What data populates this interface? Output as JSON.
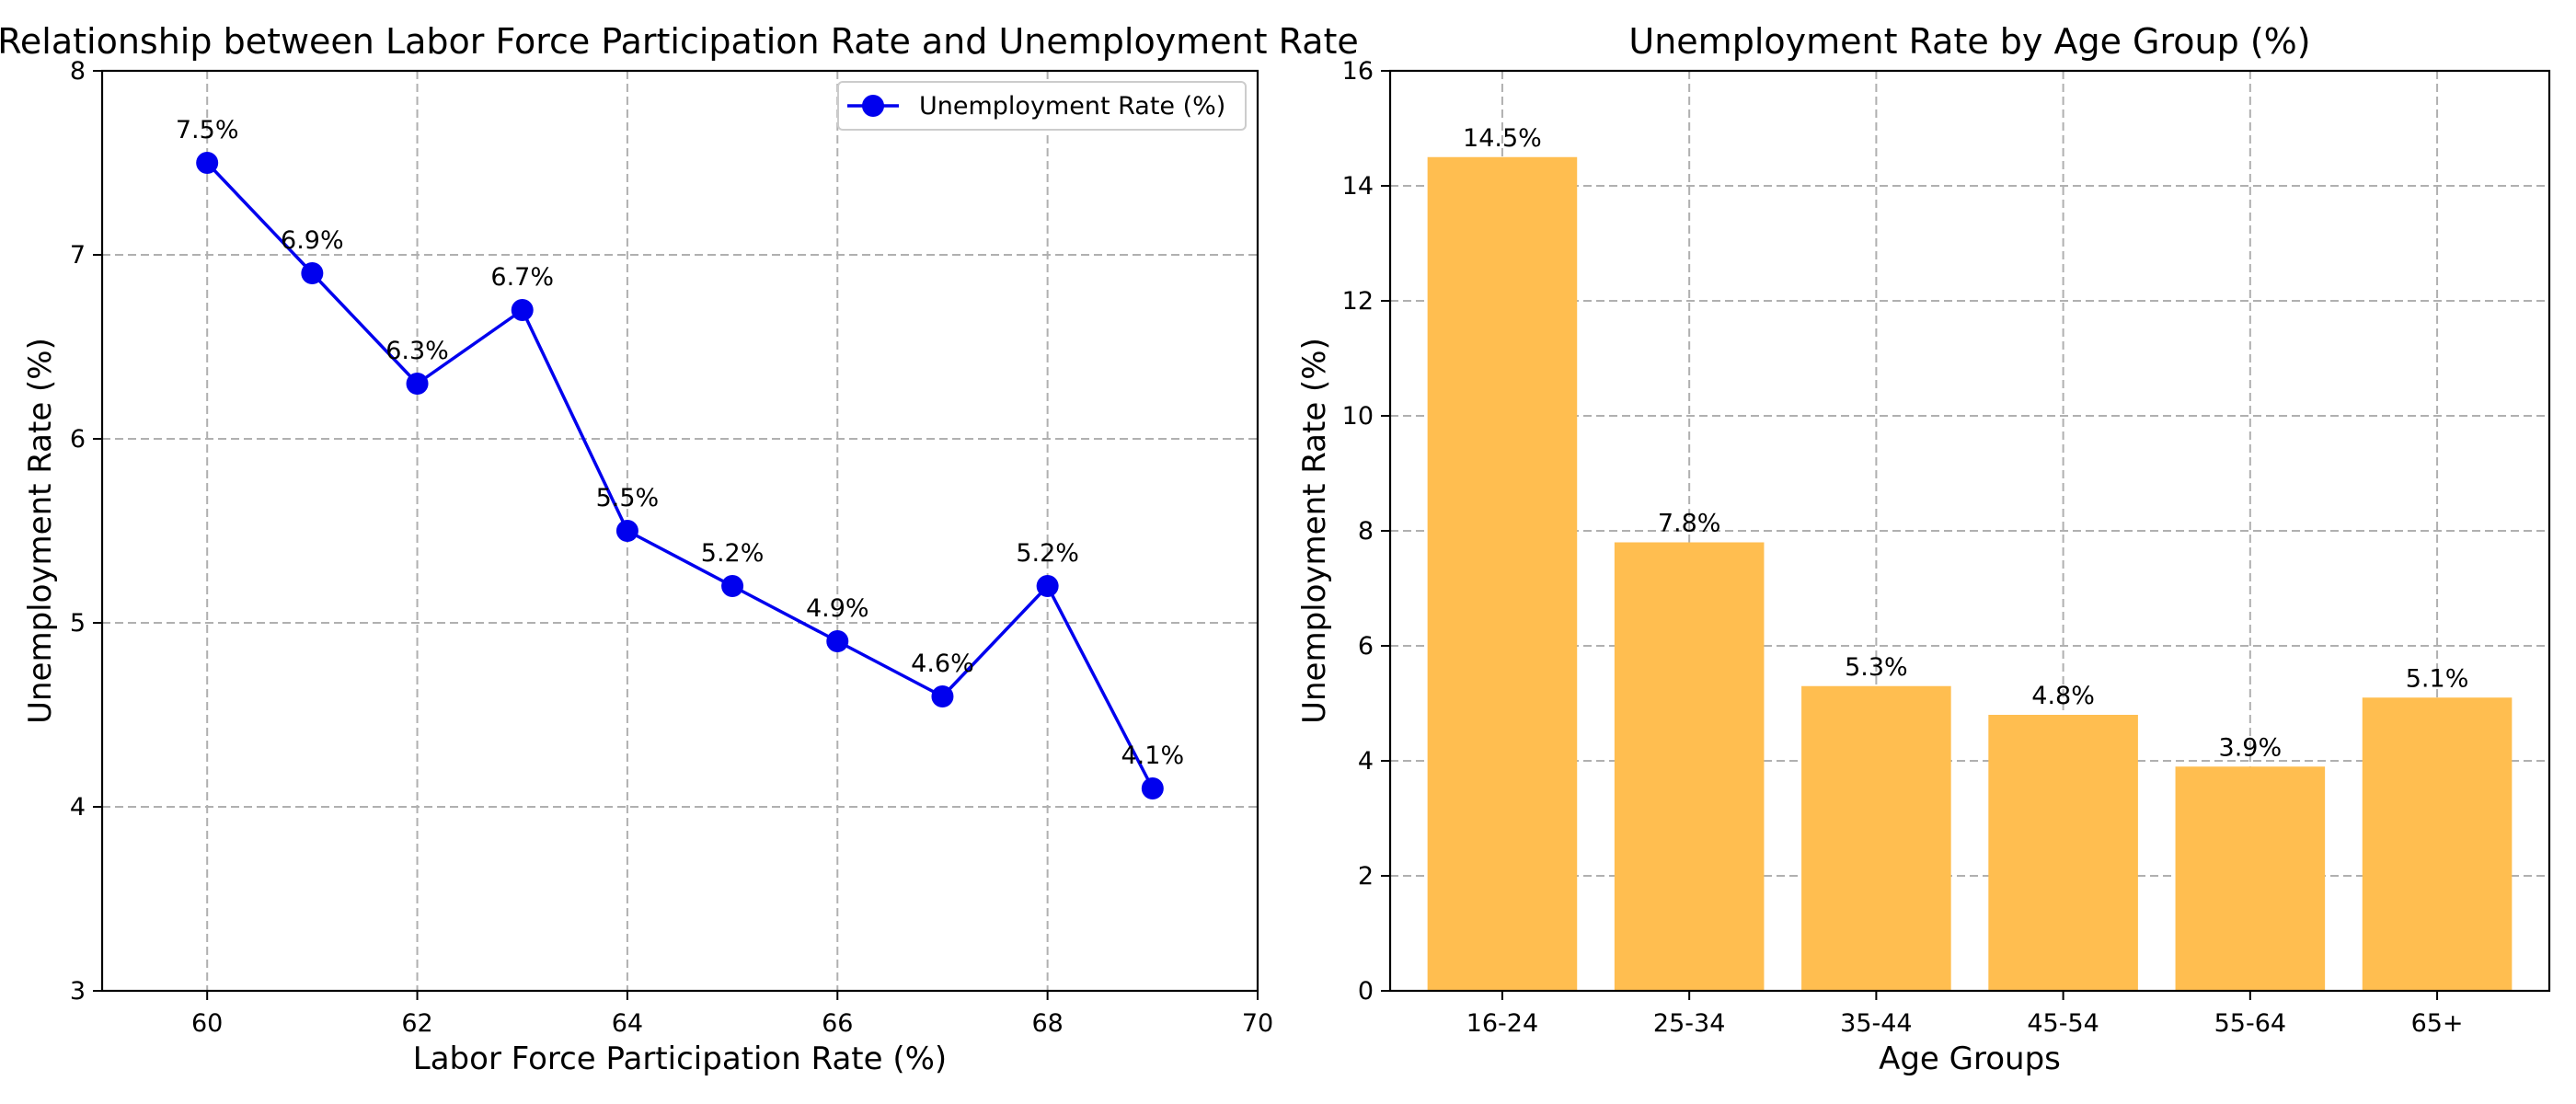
{
  "chart_data": [
    {
      "type": "line",
      "title": "Relationship between Labor Force Participation Rate and Unemployment Rate",
      "xlabel": "Labor Force Participation Rate (%)",
      "ylabel": "Unemployment Rate (%)",
      "xlim": [
        59,
        70
      ],
      "ylim": [
        3,
        8
      ],
      "xticks": [
        60,
        62,
        64,
        66,
        68,
        70
      ],
      "yticks": [
        3,
        4,
        5,
        6,
        7,
        8
      ],
      "grid": true,
      "legend_position": "top-right",
      "series": [
        {
          "name": "Unemployment Rate (%)",
          "color": "#0000ee",
          "x": [
            60,
            61,
            62,
            63,
            64,
            65,
            66,
            67,
            68,
            69
          ],
          "y": [
            7.5,
            6.9,
            6.3,
            6.7,
            5.5,
            5.2,
            4.9,
            4.6,
            5.2,
            4.1
          ],
          "labels": [
            "7.5%",
            "6.9%",
            "6.3%",
            "6.7%",
            "5.5%",
            "5.2%",
            "4.9%",
            "4.6%",
            "5.2%",
            "4.1%"
          ]
        }
      ]
    },
    {
      "type": "bar",
      "title": "Unemployment Rate by Age Group (%)",
      "xlabel": "Age Groups",
      "ylabel": "Unemployment Rate (%)",
      "ylim": [
        0,
        16
      ],
      "yticks": [
        0,
        2,
        4,
        6,
        8,
        10,
        12,
        14,
        16
      ],
      "grid": true,
      "color": "#ffbe50",
      "categories": [
        "16-24",
        "25-34",
        "35-44",
        "45-54",
        "55-64",
        "65+"
      ],
      "values": [
        14.5,
        7.8,
        5.3,
        4.8,
        3.9,
        5.1
      ],
      "labels": [
        "14.5%",
        "7.8%",
        "5.3%",
        "4.8%",
        "3.9%",
        "5.1%"
      ]
    }
  ]
}
